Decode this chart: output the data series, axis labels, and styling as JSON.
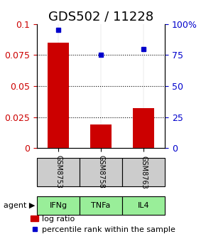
{
  "title": "GDS502 / 11228",
  "categories": [
    "IFNg",
    "TNFa",
    "IL4"
  ],
  "sample_labels": [
    "GSM8753",
    "GSM8758",
    "GSM8763"
  ],
  "log_ratios": [
    0.085,
    0.019,
    0.032
  ],
  "percentile_ranks": [
    95,
    75,
    80
  ],
  "ylim_left": [
    0,
    0.1
  ],
  "ylim_right": [
    0,
    100
  ],
  "yticks_left": [
    0,
    0.025,
    0.05,
    0.075,
    0.1
  ],
  "yticks_right": [
    0,
    25,
    50,
    75,
    100
  ],
  "ytick_labels_left": [
    "0",
    "0.025",
    "0.05",
    "0.075",
    "0.1"
  ],
  "ytick_labels_right": [
    "0",
    "25",
    "50",
    "75",
    "100%"
  ],
  "bar_color": "#cc0000",
  "dot_color": "#0000cc",
  "sample_box_color": "#cccccc",
  "agent_box_color": "#99ee99",
  "agent_label": "agent",
  "grid_color": "#000000",
  "title_fontsize": 13,
  "axis_fontsize": 9,
  "label_fontsize": 9,
  "legend_fontsize": 8
}
